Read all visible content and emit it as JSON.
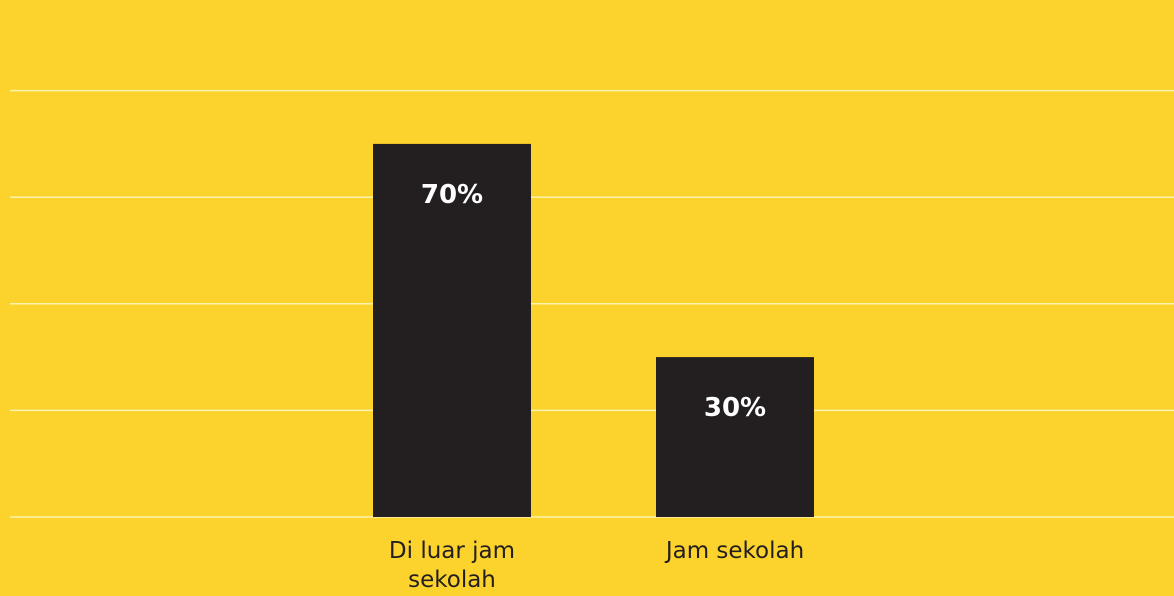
{
  "chart_data": {
    "type": "bar",
    "categories": [
      "Di luar jam sekolah",
      "Jam sekolah"
    ],
    "category_lines": [
      [
        "Di luar jam",
        "sekolah"
      ],
      [
        "Jam sekolah"
      ]
    ],
    "values": [
      70,
      30
    ],
    "value_labels": [
      "70%",
      "30%"
    ],
    "unit": "%",
    "ylim": [
      0,
      100
    ],
    "grid": true,
    "legend": "none",
    "colors": {
      "background": "#fcd22c",
      "bar": "#231f20",
      "bar_label": "#ffffff",
      "gridline": "#fdf3b0",
      "category_label": "#231f20"
    }
  }
}
